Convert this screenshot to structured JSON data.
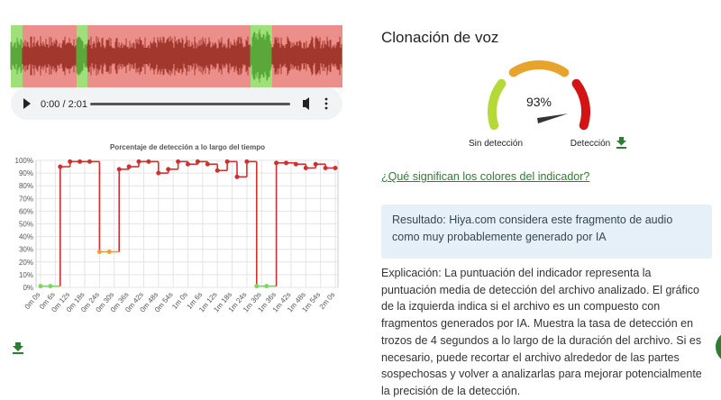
{
  "player": {
    "time": "0:00 / 2:01"
  },
  "chart_data": {
    "type": "line",
    "title": "Porcentaje de detección a lo largo del tiempo",
    "x": [
      0,
      4,
      8,
      12,
      16,
      20,
      24,
      28,
      32,
      36,
      40,
      44,
      48,
      52,
      56,
      60,
      64,
      68,
      72,
      76,
      80,
      84,
      88,
      92,
      96,
      100,
      104,
      108,
      112,
      116,
      120
    ],
    "series": [
      {
        "color": "#d32f2f",
        "values": [
          1,
          1,
          95,
          99,
          99,
          99,
          28,
          28,
          93,
          95,
          99,
          99,
          90,
          93,
          99,
          97,
          99,
          97,
          92,
          99,
          87,
          99,
          1,
          1,
          98,
          98,
          97,
          94,
          97,
          94,
          94
        ]
      }
    ],
    "point_colors": [
      "#7ed957",
      "#f0a030",
      "#d32f2f"
    ],
    "xlim": [
      0,
      120
    ],
    "xticks": [
      {
        "value": 0,
        "label": "0m 0s"
      },
      {
        "value": 6,
        "label": "0m 6s"
      },
      {
        "value": 12,
        "label": "0m 12s"
      },
      {
        "value": 18,
        "label": "0m 18s"
      },
      {
        "value": 24,
        "label": "0m 24s"
      },
      {
        "value": 30,
        "label": "0m 30s"
      },
      {
        "value": 36,
        "label": "0m 36s"
      },
      {
        "value": 42,
        "label": "0m 42s"
      },
      {
        "value": 48,
        "label": "0m 48s"
      },
      {
        "value": 54,
        "label": "0m 54s"
      },
      {
        "value": 60,
        "label": "1m 0s"
      },
      {
        "value": 66,
        "label": "1m 6s"
      },
      {
        "value": 72,
        "label": "1m 12s"
      },
      {
        "value": 78,
        "label": "1m 18s"
      },
      {
        "value": 84,
        "label": "1m 24s"
      },
      {
        "value": 90,
        "label": "1m 30s"
      },
      {
        "value": 96,
        "label": "1m 36s"
      },
      {
        "value": 102,
        "label": "1m 42s"
      },
      {
        "value": 108,
        "label": "1m 48s"
      },
      {
        "value": 114,
        "label": "1m 54s"
      },
      {
        "value": 120,
        "label": "2m 0s"
      }
    ],
    "ylim": [
      0,
      100
    ],
    "yticks": [
      {
        "value": 0,
        "label": "0%"
      },
      {
        "value": 10,
        "label": "10%"
      },
      {
        "value": 20,
        "label": "20%"
      },
      {
        "value": 30,
        "label": "30%"
      },
      {
        "value": 40,
        "label": "40%"
      },
      {
        "value": 50,
        "label": "50%"
      },
      {
        "value": 60,
        "label": "60%"
      },
      {
        "value": 70,
        "label": "70%"
      },
      {
        "value": 80,
        "label": "80%"
      },
      {
        "value": 90,
        "label": "90%"
      },
      {
        "value": 100,
        "label": "100%"
      }
    ],
    "grid": true
  },
  "panel": {
    "title": "Clonación de voz",
    "gauge": {
      "value": 93,
      "label": "93%",
      "min_label": "Sin detección",
      "max_label": "Detección"
    },
    "link": "¿Qué significan los colores del indicador?",
    "result": "Resultado: Hiya.com considera este fragmento de audio como muy probablemente generado por IA",
    "explanation": "Explicación: La puntuación del indicador representa la puntuación media de detección del archivo analizado. El gráfico de la izquierda indica si el archivo es un compuesto con fragmentos generados por IA. Muestra la tasa de detección en trozos de 4 segundos a lo largo de la duración del archivo. Si es necesario, puede recortar el archivo alrededor de las partes sospechosas y volver a analizarlas para mejorar potencialmente la precisión de la detección."
  }
}
